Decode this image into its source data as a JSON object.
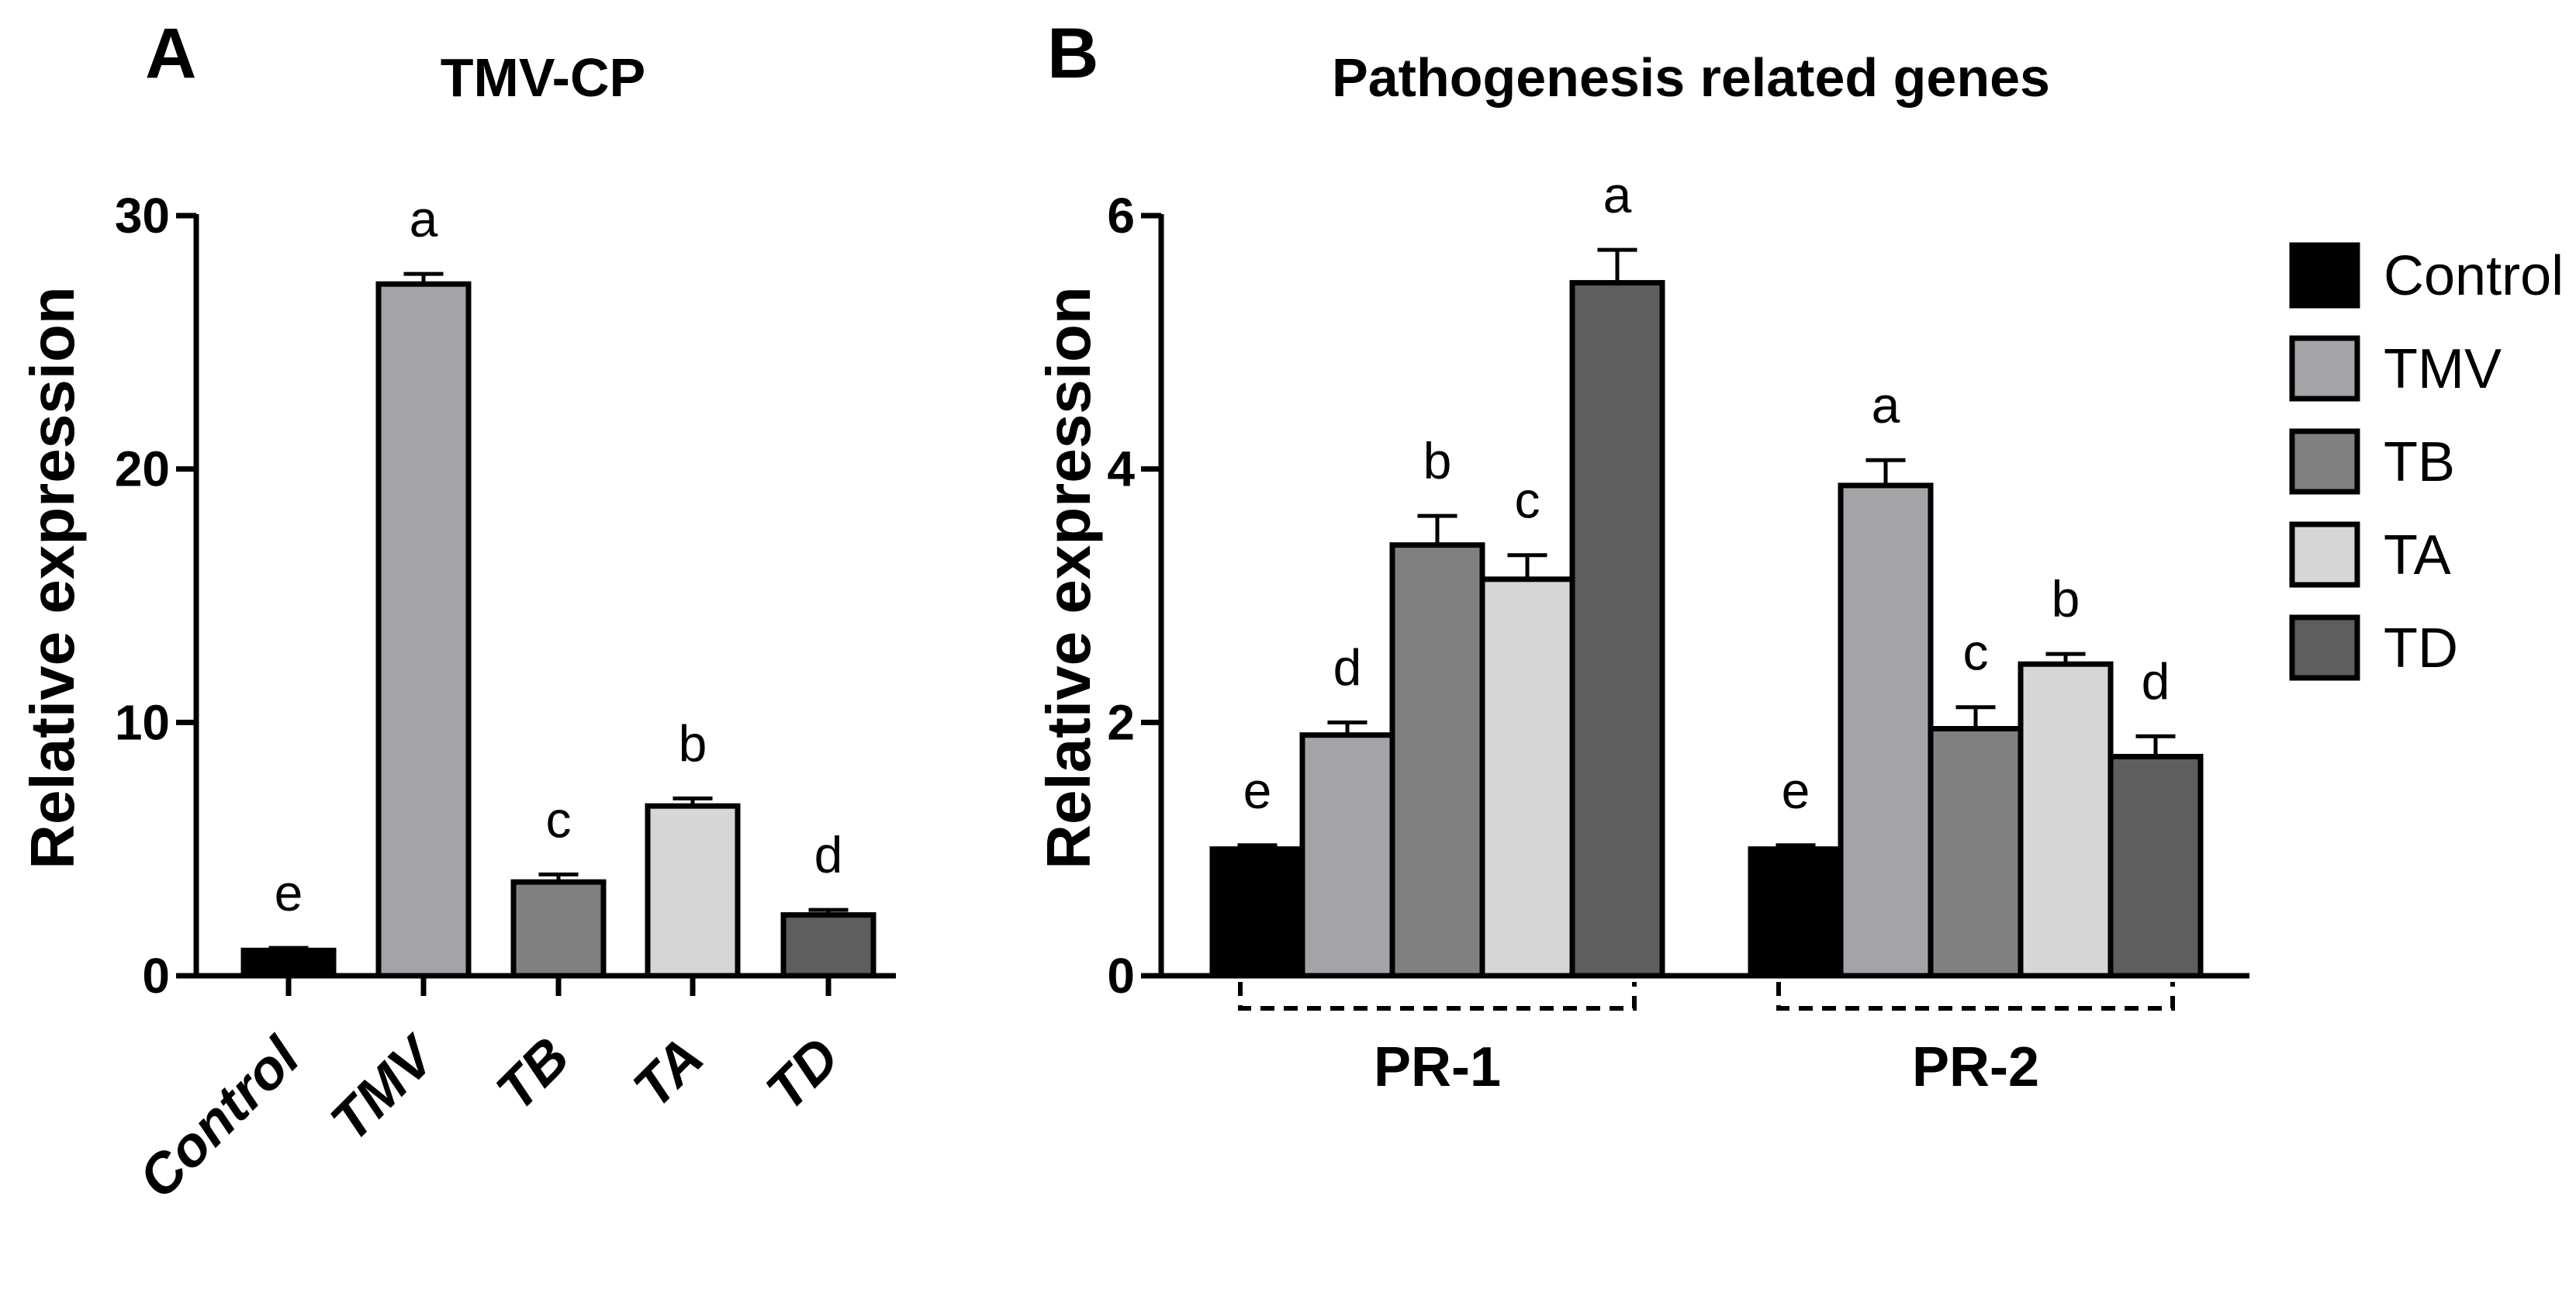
{
  "chart_data": [
    {
      "panel": "A",
      "type": "bar",
      "title": "TMV-CP",
      "xlabel": "",
      "ylabel": "Relative expression",
      "ylim": [
        0,
        30
      ],
      "yticks": [
        0,
        10,
        20,
        30
      ],
      "grid": false,
      "categories": [
        "Control",
        "TMV",
        "TB",
        "TA",
        "TD"
      ],
      "values": [
        1.0,
        27.3,
        3.7,
        6.7,
        2.4
      ],
      "errors": [
        0.1,
        0.4,
        0.3,
        0.3,
        0.2
      ],
      "significance": [
        "e",
        "a",
        "c",
        "b",
        "d"
      ],
      "colors": [
        "#000000",
        "#a4a4a8",
        "#808080",
        "#d6d6d6",
        "#5e5e5e"
      ]
    },
    {
      "panel": "B",
      "type": "bar",
      "title": "Pathogenesis related genes",
      "xlabel": "",
      "ylabel": "Relative expression",
      "ylim": [
        0,
        6
      ],
      "yticks": [
        0,
        2,
        4,
        6
      ],
      "grid": false,
      "categories": [
        "PR-1",
        "PR-2"
      ],
      "legend_position": "right",
      "series": [
        {
          "name": "Control",
          "values": [
            1.0,
            1.0
          ],
          "errors": [
            0.03,
            0.03
          ],
          "significance": [
            "e",
            "e"
          ],
          "color": "#000000"
        },
        {
          "name": "TMV",
          "values": [
            1.9,
            3.87
          ],
          "errors": [
            0.1,
            0.2
          ],
          "significance": [
            "d",
            "a"
          ],
          "color": "#a4a4a8"
        },
        {
          "name": "TB",
          "values": [
            3.4,
            1.95
          ],
          "errors": [
            0.23,
            0.17
          ],
          "significance": [
            "b",
            "c"
          ],
          "color": "#808080"
        },
        {
          "name": "TA",
          "values": [
            3.13,
            2.46
          ],
          "errors": [
            0.19,
            0.08
          ],
          "significance": [
            "c",
            "b"
          ],
          "color": "#d6d6d6"
        },
        {
          "name": "TD",
          "values": [
            5.47,
            1.73
          ],
          "errors": [
            0.26,
            0.16
          ],
          "significance": [
            "a",
            "d"
          ],
          "color": "#5e5e5e"
        }
      ]
    }
  ]
}
